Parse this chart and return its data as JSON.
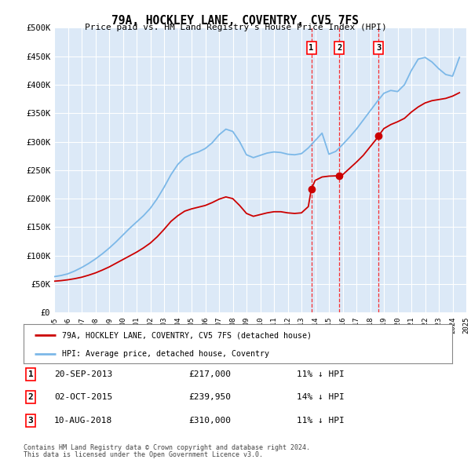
{
  "title": "79A, HOCKLEY LANE, COVENTRY, CV5 7FS",
  "subtitle": "Price paid vs. HM Land Registry's House Price Index (HPI)",
  "background_color": "#ffffff",
  "plot_background": "#dce9f7",
  "grid_color": "#ffffff",
  "hpi_color": "#7cb8e8",
  "price_color": "#cc0000",
  "ylim": [
    0,
    500000
  ],
  "yticks": [
    0,
    50000,
    100000,
    150000,
    200000,
    250000,
    300000,
    350000,
    400000,
    450000,
    500000
  ],
  "ytick_labels": [
    "£0",
    "£50K",
    "£100K",
    "£150K",
    "£200K",
    "£250K",
    "£300K",
    "£350K",
    "£400K",
    "£450K",
    "£500K"
  ],
  "xmin_year": 1995,
  "xmax_year": 2025,
  "xticks": [
    1995,
    1996,
    1997,
    1998,
    1999,
    2000,
    2001,
    2002,
    2003,
    2004,
    2005,
    2006,
    2007,
    2008,
    2009,
    2010,
    2011,
    2012,
    2013,
    2014,
    2015,
    2016,
    2017,
    2018,
    2019,
    2020,
    2021,
    2022,
    2023,
    2024,
    2025
  ],
  "sale_dates": [
    2013.72,
    2015.75,
    2018.6
  ],
  "sale_prices": [
    217000,
    239950,
    310000
  ],
  "sale_labels": [
    "1",
    "2",
    "3"
  ],
  "legend_line1": "79A, HOCKLEY LANE, COVENTRY, CV5 7FS (detached house)",
  "legend_line2": "HPI: Average price, detached house, Coventry",
  "table_rows": [
    {
      "num": "1",
      "date": "20-SEP-2013",
      "price": "£217,000",
      "hpi": "11% ↓ HPI"
    },
    {
      "num": "2",
      "date": "02-OCT-2015",
      "price": "£239,950",
      "hpi": "14% ↓ HPI"
    },
    {
      "num": "3",
      "date": "10-AUG-2018",
      "price": "£310,000",
      "hpi": "11% ↓ HPI"
    }
  ],
  "footnote1": "Contains HM Land Registry data © Crown copyright and database right 2024.",
  "footnote2": "This data is licensed under the Open Government Licence v3.0.",
  "hpi_data_x": [
    1995.0,
    1995.5,
    1996.0,
    1996.5,
    1997.0,
    1997.5,
    1998.0,
    1998.5,
    1999.0,
    1999.5,
    2000.0,
    2000.5,
    2001.0,
    2001.5,
    2002.0,
    2002.5,
    2003.0,
    2003.5,
    2004.0,
    2004.5,
    2005.0,
    2005.5,
    2006.0,
    2006.5,
    2007.0,
    2007.5,
    2008.0,
    2008.5,
    2009.0,
    2009.5,
    2010.0,
    2010.5,
    2011.0,
    2011.5,
    2012.0,
    2012.5,
    2013.0,
    2013.5,
    2014.0,
    2014.5,
    2015.0,
    2015.5,
    2016.0,
    2016.5,
    2017.0,
    2017.5,
    2018.0,
    2018.5,
    2019.0,
    2019.5,
    2020.0,
    2020.5,
    2021.0,
    2021.5,
    2022.0,
    2022.5,
    2023.0,
    2023.5,
    2024.0,
    2024.5
  ],
  "hpi_data_y": [
    63000,
    65000,
    68000,
    73000,
    79000,
    86000,
    94000,
    103000,
    113000,
    124000,
    136000,
    148000,
    159000,
    170000,
    183000,
    200000,
    220000,
    242000,
    260000,
    272000,
    278000,
    282000,
    288000,
    298000,
    312000,
    322000,
    318000,
    300000,
    277000,
    272000,
    276000,
    280000,
    282000,
    281000,
    278000,
    277000,
    279000,
    289000,
    302000,
    315000,
    278000,
    283000,
    295000,
    308000,
    322000,
    338000,
    354000,
    370000,
    385000,
    390000,
    388000,
    400000,
    425000,
    445000,
    448000,
    440000,
    428000,
    418000,
    415000,
    448000
  ],
  "price_line_x": [
    1995.0,
    1995.5,
    1996.0,
    1996.5,
    1997.0,
    1997.5,
    1998.0,
    1998.5,
    1999.0,
    1999.5,
    2000.0,
    2000.5,
    2001.0,
    2001.5,
    2002.0,
    2002.5,
    2003.0,
    2003.5,
    2004.0,
    2004.5,
    2005.0,
    2005.5,
    2006.0,
    2006.5,
    2007.0,
    2007.5,
    2008.0,
    2008.5,
    2009.0,
    2009.5,
    2010.0,
    2010.5,
    2011.0,
    2011.5,
    2012.0,
    2012.5,
    2013.0,
    2013.5,
    2013.72,
    2014.0,
    2014.5,
    2015.0,
    2015.5,
    2015.75,
    2016.0,
    2016.5,
    2017.0,
    2017.5,
    2018.0,
    2018.5,
    2018.6,
    2019.0,
    2019.5,
    2020.0,
    2020.5,
    2021.0,
    2021.5,
    2022.0,
    2022.5,
    2023.0,
    2023.5,
    2024.0,
    2024.5
  ],
  "price_line_y": [
    55000,
    56000,
    57500,
    59500,
    62000,
    65500,
    69500,
    74500,
    80000,
    86500,
    93000,
    99500,
    106000,
    113500,
    122000,
    133000,
    146000,
    160000,
    170000,
    178000,
    182000,
    185000,
    188000,
    193000,
    199000,
    203000,
    200000,
    188000,
    174000,
    169000,
    172000,
    175000,
    177000,
    177000,
    175000,
    174000,
    175000,
    186000,
    217000,
    232000,
    238000,
    239500,
    239950,
    239950,
    242000,
    253000,
    264000,
    276000,
    291000,
    306000,
    310000,
    323000,
    330000,
    335000,
    341000,
    352000,
    361000,
    368000,
    372000,
    374000,
    376000,
    380000,
    386000
  ]
}
